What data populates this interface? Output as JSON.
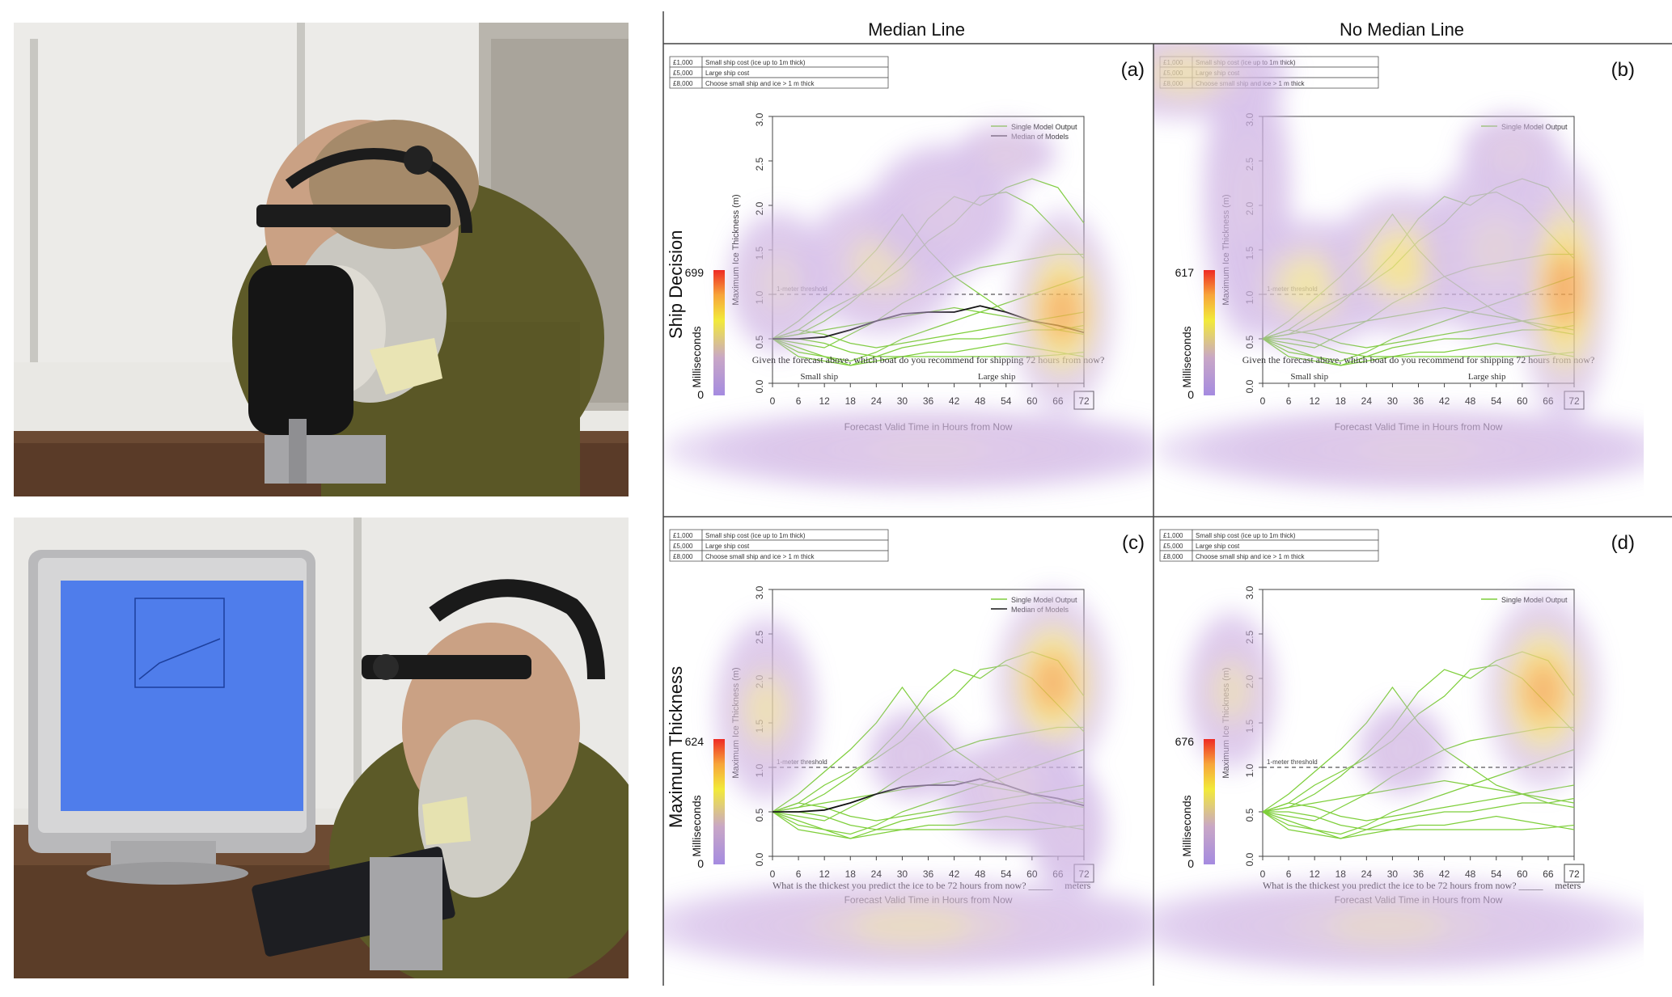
{
  "columns": [
    "Median Line",
    "No Median Line"
  ],
  "rows": [
    "Ship Decision",
    "Maximum Thickness"
  ],
  "cost_table": [
    [
      "£1,000",
      "Small ship cost (ice up to 1m thick)"
    ],
    [
      "£5,000",
      "Large ship cost"
    ],
    [
      "£8,000",
      "Choose small ship and ice > 1 m thick"
    ]
  ],
  "y_axis_label": "Maximum Ice Thickness (m)",
  "x_axis_label": "Forecast Valid Time in Hours from Now",
  "y_ticks": [
    "0.0",
    "0.5",
    "1.0",
    "1.5",
    "2.0",
    "2.5",
    "3.0"
  ],
  "x_ticks": [
    "0",
    "6",
    "12",
    "18",
    "24",
    "30",
    "36",
    "42",
    "48",
    "54",
    "60",
    "66",
    "72"
  ],
  "threshold_label": "1-meter threshold",
  "legend": {
    "single": "Single Model Output",
    "median": "Median of Models"
  },
  "question_ship": "Given the forecast above, which boat do you recommend for shipping 72 hours from now?",
  "option_small": "Small ship",
  "option_large": "Large ship",
  "question_thickness": "What is the thickest you predict the ice to be 72 hours from now?",
  "thickness_suffix": "meters",
  "colorbar_unit": "Milliseconds",
  "colorbar_min": "0",
  "panels": [
    {
      "label": "(a)",
      "median": true,
      "task": "ship",
      "max": "699"
    },
    {
      "label": "(b)",
      "median": false,
      "task": "ship",
      "max": "617"
    },
    {
      "label": "(c)",
      "median": true,
      "task": "thickness",
      "max": "624"
    },
    {
      "label": "(d)",
      "median": false,
      "task": "thickness",
      "max": "676"
    }
  ],
  "chart_data": {
    "type": "line",
    "x": [
      0,
      6,
      12,
      18,
      24,
      30,
      36,
      42,
      48,
      54,
      60,
      66,
      72
    ],
    "series": [
      {
        "values": [
          0.5,
          0.7,
          0.95,
          1.2,
          1.5,
          1.9,
          1.5,
          1.2,
          1.0,
          0.8,
          0.7,
          0.6,
          0.55
        ]
      },
      {
        "values": [
          0.5,
          0.55,
          0.7,
          0.9,
          1.15,
          1.45,
          1.85,
          2.1,
          2.0,
          2.2,
          2.3,
          2.2,
          1.8
        ]
      },
      {
        "values": [
          0.5,
          0.6,
          0.8,
          0.95,
          1.1,
          1.3,
          1.6,
          1.8,
          2.1,
          2.15,
          2.0,
          1.7,
          1.4
        ]
      },
      {
        "values": [
          0.5,
          0.45,
          0.4,
          0.55,
          0.7,
          0.9,
          1.05,
          1.2,
          1.3,
          1.35,
          1.4,
          1.45,
          1.45
        ]
      },
      {
        "values": [
          0.5,
          0.35,
          0.3,
          0.25,
          0.35,
          0.5,
          0.6,
          0.7,
          0.8,
          0.9,
          1.0,
          1.1,
          1.2
        ]
      },
      {
        "values": [
          0.5,
          0.6,
          0.55,
          0.45,
          0.4,
          0.45,
          0.5,
          0.55,
          0.6,
          0.65,
          0.7,
          0.75,
          0.8
        ]
      },
      {
        "values": [
          0.5,
          0.4,
          0.3,
          0.2,
          0.3,
          0.4,
          0.45,
          0.5,
          0.5,
          0.55,
          0.6,
          0.6,
          0.65
        ]
      },
      {
        "values": [
          0.5,
          0.5,
          0.45,
          0.35,
          0.3,
          0.3,
          0.3,
          0.3,
          0.3,
          0.3,
          0.3,
          0.32,
          0.35
        ]
      },
      {
        "values": [
          0.5,
          0.3,
          0.25,
          0.2,
          0.25,
          0.3,
          0.35,
          0.35,
          0.4,
          0.45,
          0.4,
          0.35,
          0.3
        ]
      },
      {
        "values": [
          0.5,
          0.55,
          0.6,
          0.65,
          0.7,
          0.75,
          0.8,
          0.85,
          0.8,
          0.75,
          0.7,
          0.65,
          0.6
        ]
      },
      {
        "name": "Median of Models",
        "values": [
          0.5,
          0.5,
          0.52,
          0.6,
          0.7,
          0.78,
          0.8,
          0.8,
          0.87,
          0.8,
          0.7,
          0.65,
          0.57
        ]
      }
    ],
    "ylim": [
      0,
      3
    ],
    "threshold": 1.0
  }
}
